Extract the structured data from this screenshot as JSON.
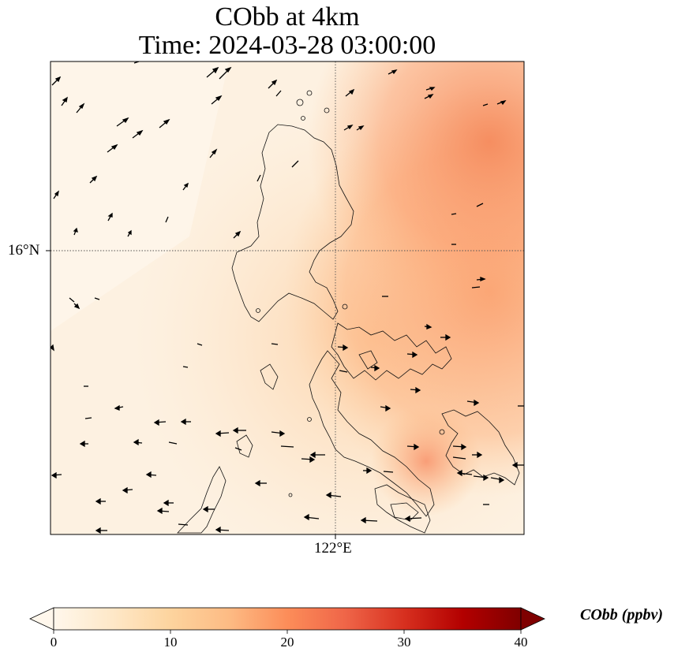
{
  "title": {
    "line1": "CObb at 4km",
    "line2": "Time: 2024-03-28 03:00:00"
  },
  "map": {
    "region": "Luzon, Philippines",
    "field": "CObb",
    "level": "4km",
    "colormap": "OrRd",
    "gridlines": "dotted",
    "lat_label": "16°N",
    "lon_label": "122°E",
    "overlays": [
      "coastlines",
      "wind-vectors"
    ],
    "colors": {
      "low": "#fff7ec",
      "mid": "#fdbb84",
      "high": "#ef6548",
      "max": "#7f0000"
    }
  },
  "colorbar": {
    "label": "CObb (ppbv)",
    "ticks": [
      "0",
      "10",
      "20",
      "30",
      "40"
    ],
    "min": 0,
    "max": 40,
    "extend": "both"
  }
}
